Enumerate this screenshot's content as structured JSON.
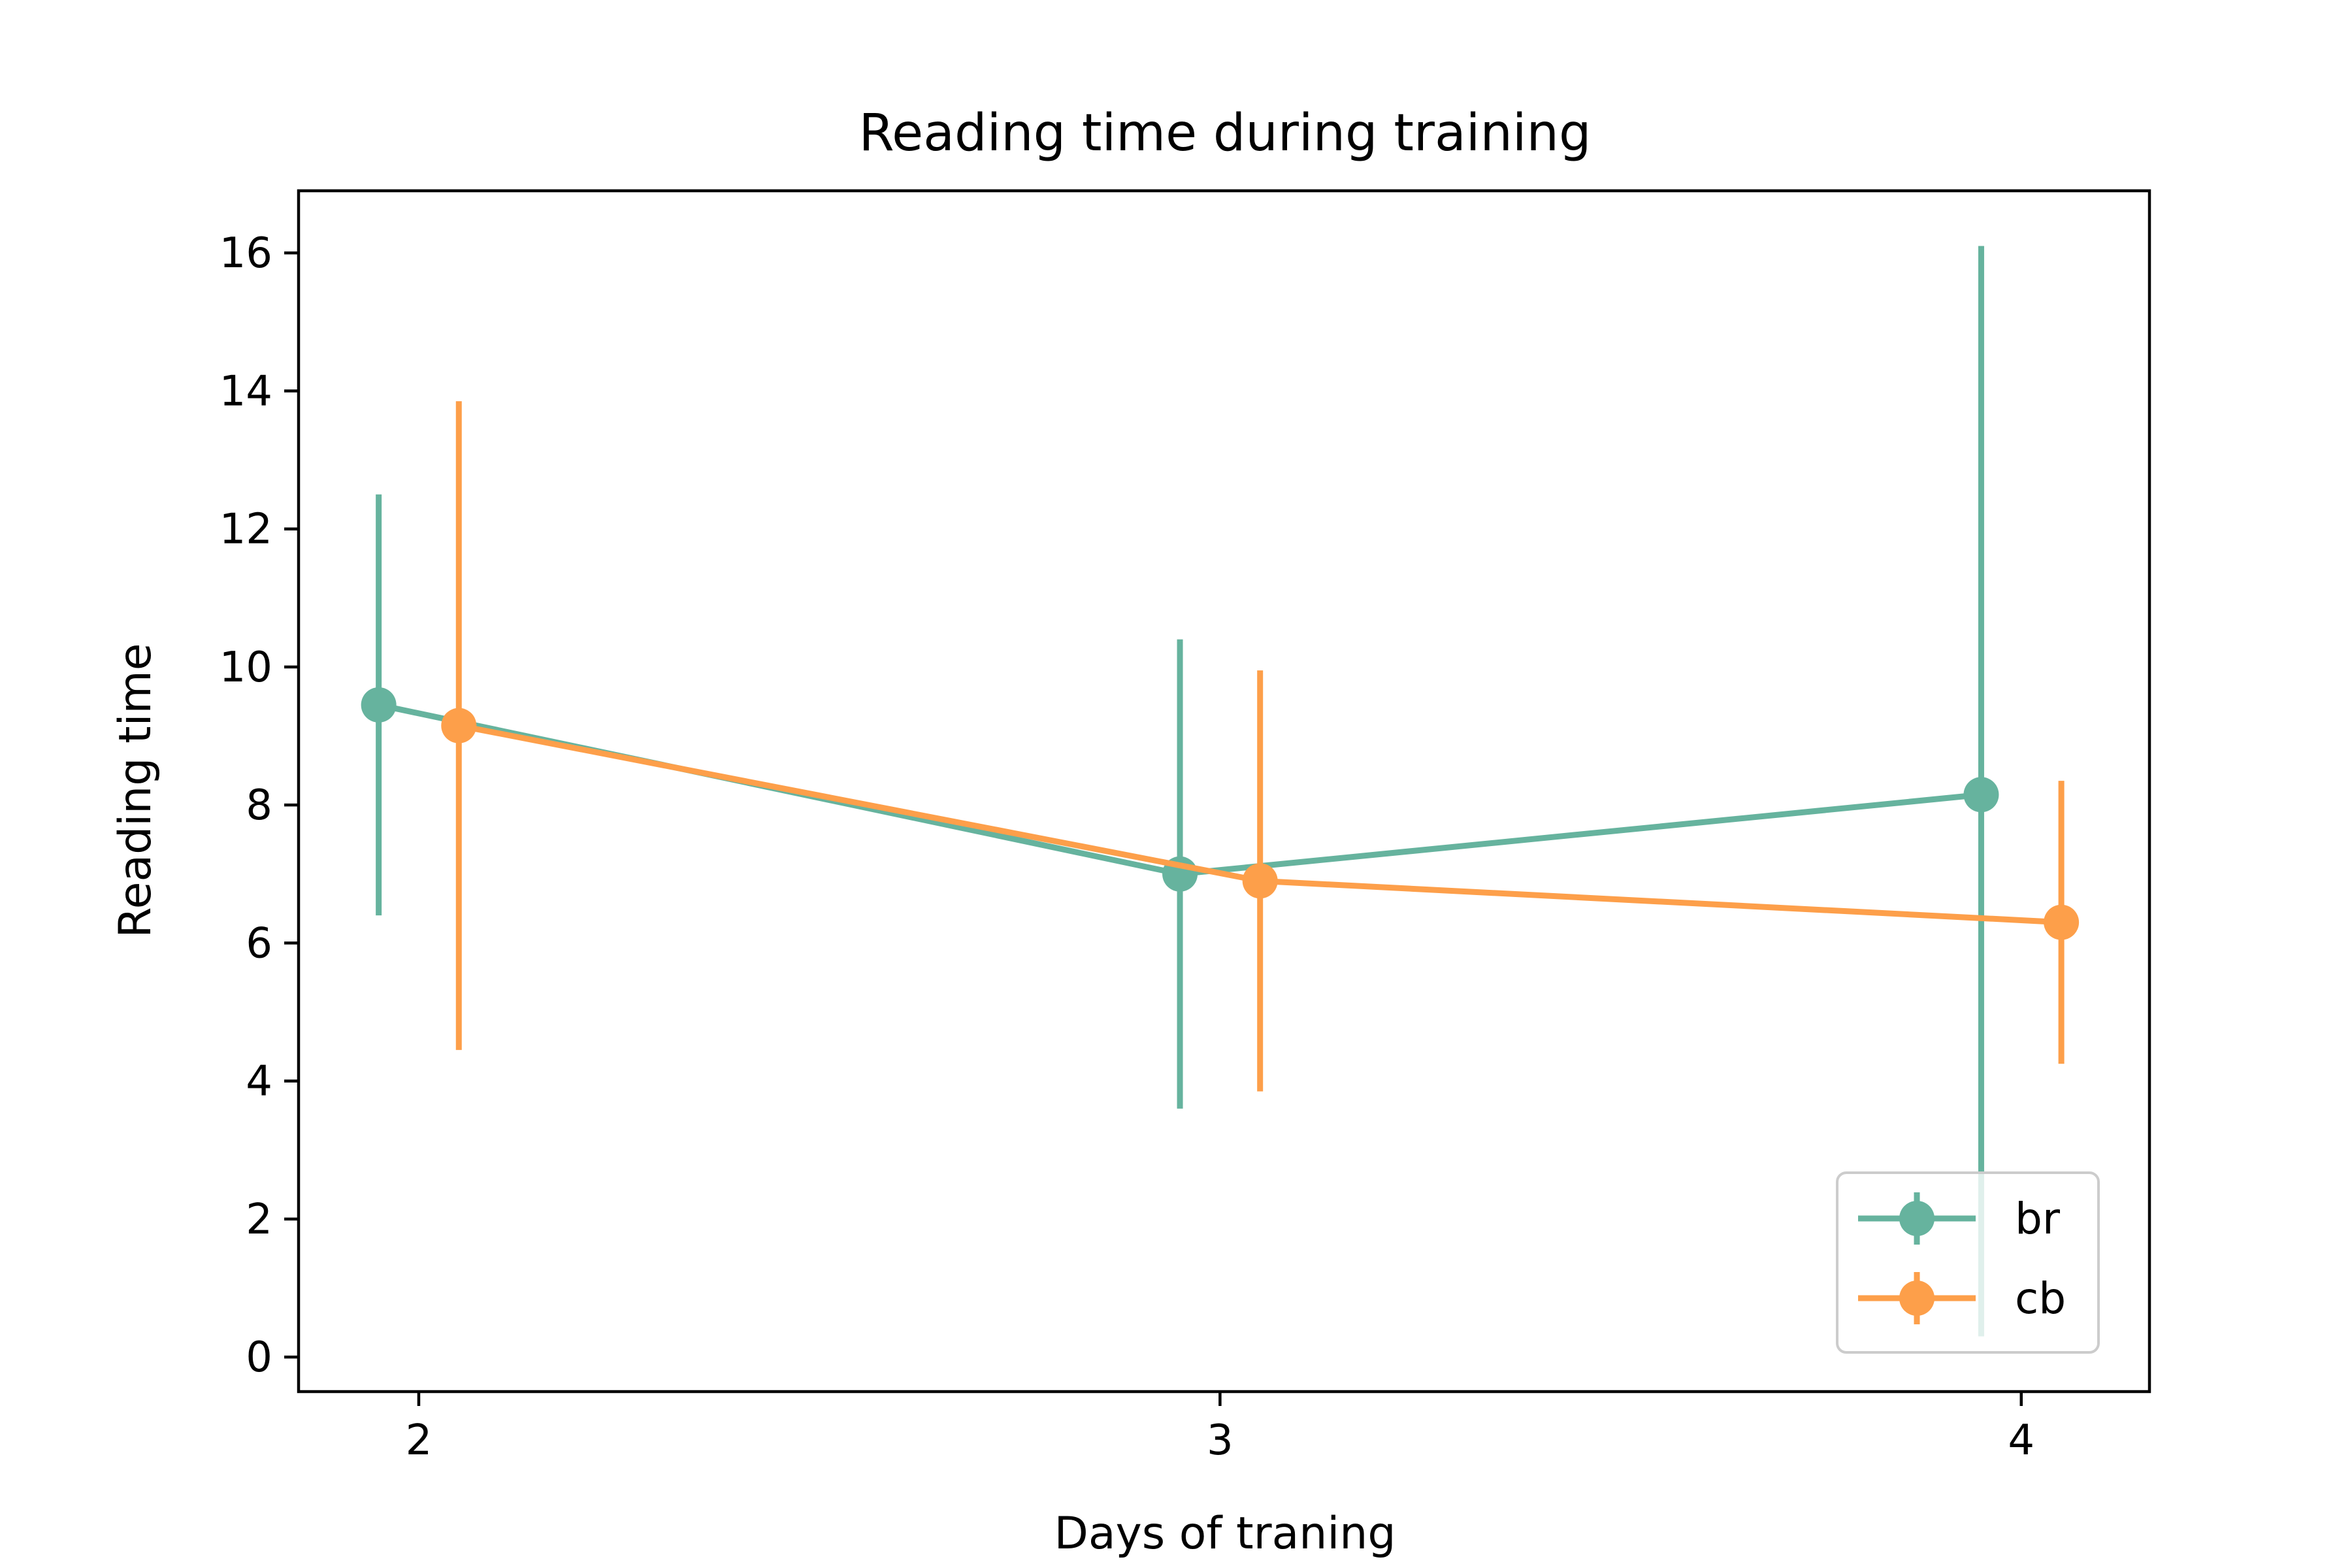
{
  "chart_data": {
    "type": "line",
    "title": "Reading time during training",
    "xlabel": "Days of traning",
    "ylabel": "Reading time",
    "xlim": [
      1.85,
      4.16
    ],
    "ylim": [
      -0.5,
      16.9
    ],
    "xticks": [
      2,
      3,
      4
    ],
    "xtick_labels": [
      "2",
      "3",
      "4"
    ],
    "yticks": [
      0,
      2,
      4,
      6,
      8,
      10,
      12,
      14,
      16
    ],
    "ytick_labels": [
      "0",
      "2",
      "4",
      "6",
      "8",
      "10",
      "12",
      "14",
      "16"
    ],
    "grid": false,
    "legend_position": "lower right",
    "series": [
      {
        "name": "br",
        "color": "#66b39e",
        "x": [
          1.95,
          2.95,
          3.95
        ],
        "y": [
          9.45,
          7.0,
          8.15
        ],
        "err_low": [
          6.4,
          3.6,
          0.3
        ],
        "err_high": [
          12.5,
          10.4,
          16.1
        ]
      },
      {
        "name": "cb",
        "color": "#fd9f4a",
        "x": [
          2.05,
          3.05,
          4.05
        ],
        "y": [
          9.15,
          6.9,
          6.3
        ],
        "err_low": [
          4.45,
          3.85,
          4.25
        ],
        "err_high": [
          13.85,
          9.95,
          8.35
        ]
      }
    ]
  }
}
